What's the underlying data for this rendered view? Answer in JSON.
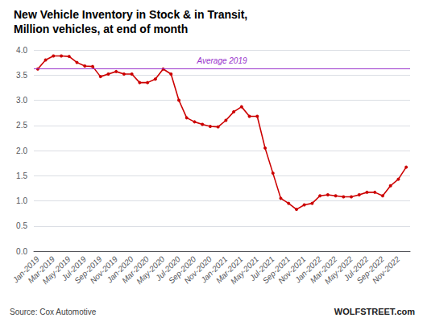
{
  "chart_data": {
    "type": "line",
    "title": "New Vehicle Inventory in Stock & in Transit,",
    "subtitle": "Million vehicles, at end of month",
    "source": "Source: Cox Automotive",
    "watermark": "WOLFSTREET.com",
    "categories": [
      "Jan-2019",
      null,
      "Mar-2019",
      null,
      "May-2019",
      null,
      "Jul-2019",
      null,
      "Sep-2019",
      null,
      "Nov-2019",
      null,
      "Jan-2020",
      null,
      "Mar-2020",
      null,
      "May-2020",
      null,
      "Jul-2020",
      null,
      "Sep-2020",
      null,
      "Nov-2020",
      null,
      "Jan-2021",
      null,
      "Mar-2021",
      null,
      "May-2021",
      null,
      "Jul-2021",
      null,
      "Sep-2021",
      null,
      "Nov-2021",
      null,
      "Jan-2022",
      null,
      "Mar-2022",
      null,
      "May-2022",
      null,
      "Jul-2022",
      null,
      "Sep-2022",
      null,
      "Nov-2022",
      null
    ],
    "values": [
      3.62,
      3.8,
      3.88,
      3.88,
      3.87,
      3.75,
      3.68,
      3.67,
      3.47,
      3.52,
      3.57,
      3.52,
      3.52,
      3.35,
      3.35,
      3.42,
      3.62,
      3.52,
      3.0,
      2.65,
      2.57,
      2.52,
      2.48,
      2.47,
      2.6,
      2.77,
      2.87,
      2.68,
      2.68,
      2.05,
      1.55,
      1.05,
      0.95,
      0.83,
      0.92,
      0.95,
      1.1,
      1.12,
      1.1,
      1.08,
      1.08,
      1.12,
      1.17,
      1.17,
      1.1,
      1.3,
      1.43,
      1.67
    ],
    "color": "#CC0000",
    "marker": "circle",
    "reference_lines": [
      {
        "value": 3.63,
        "label": "Average 2019",
        "color": "#9933CC"
      }
    ],
    "ylim": [
      0.0,
      4.0
    ],
    "yticks": [
      {
        "value": 0.0,
        "label": "0.0"
      },
      0.5,
      {
        "value": 1.0,
        "label": "1.0"
      },
      1.5,
      {
        "value": 2.0,
        "label": "2.0"
      },
      2.5,
      {
        "value": 3.0,
        "label": "3.0"
      },
      3.5,
      {
        "value": 4.0,
        "label": "4.0"
      }
    ],
    "grid": true
  }
}
